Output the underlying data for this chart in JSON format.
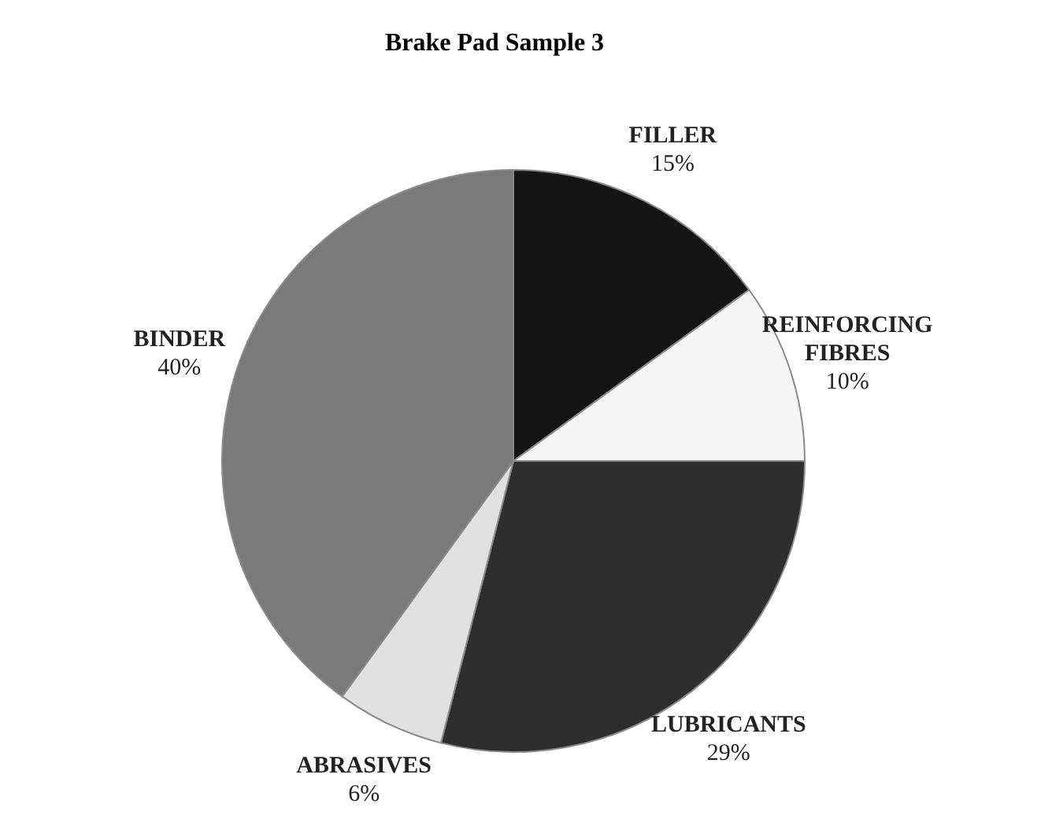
{
  "chart_data": {
    "type": "pie",
    "title": "Brake Pad Sample 3",
    "categories": [
      "FILLER",
      "REINFORCING FIBRES",
      "LUBRICANTS",
      "ABRASIVES",
      "BINDER"
    ],
    "values": [
      15,
      10,
      29,
      6,
      40
    ],
    "value_labels": [
      "15%",
      "10%",
      "29%",
      "6%",
      "40%"
    ],
    "colors": [
      "#151515",
      "#f5f5f5",
      "#2e2e2e",
      "#e0e0e0",
      "#7a7a7a"
    ]
  }
}
